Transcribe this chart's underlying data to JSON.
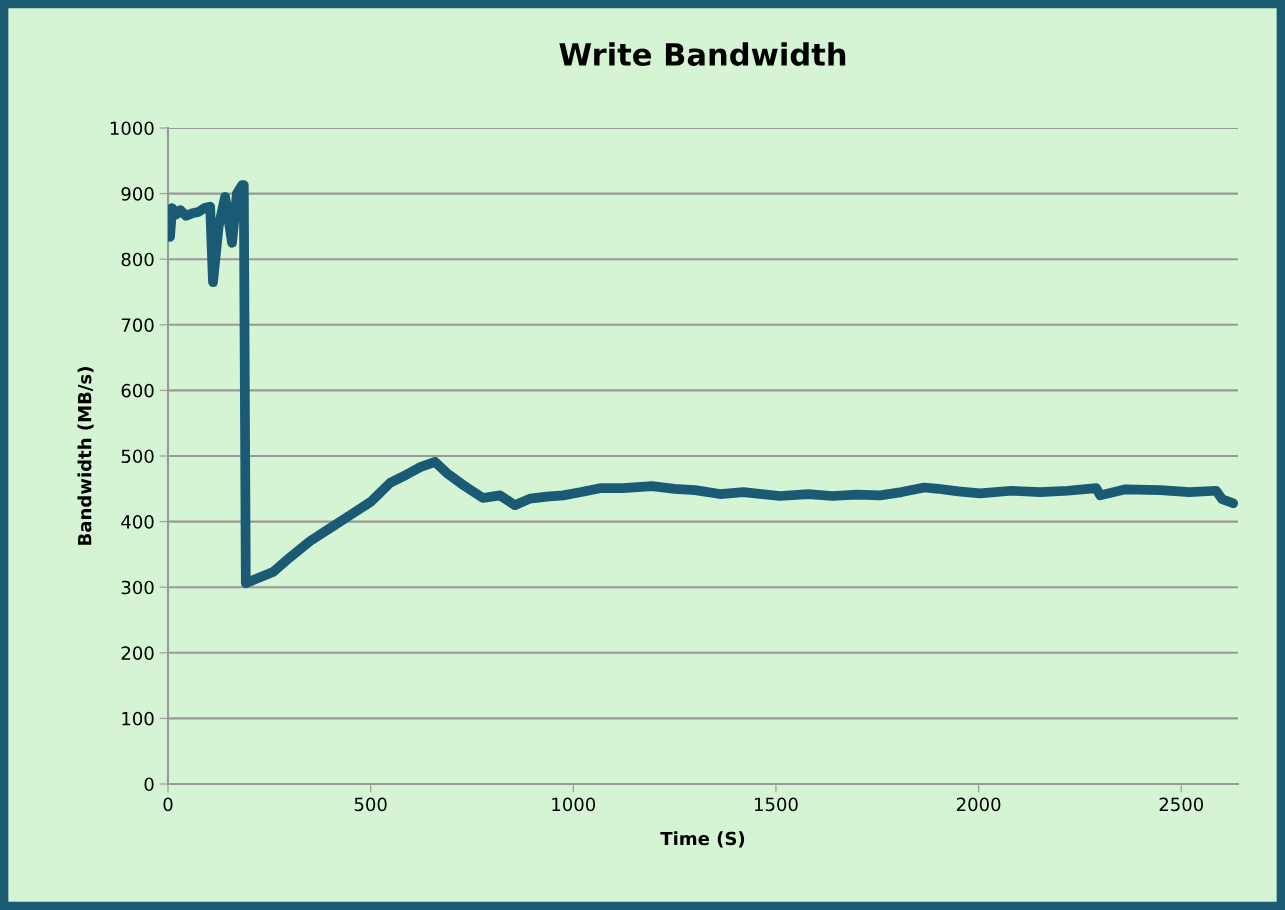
{
  "chart_data": {
    "type": "line",
    "title": "Write Bandwidth",
    "xlabel": "Time (S)",
    "ylabel": "Bandwidth (MB/s)",
    "x": [
      5,
      8,
      10,
      20,
      30,
      45,
      60,
      75,
      90,
      104,
      111,
      125,
      141,
      158,
      170,
      183,
      187,
      192,
      215,
      259,
      300,
      350,
      400,
      450,
      500,
      548,
      590,
      622,
      659,
      688,
      730,
      777,
      819,
      856,
      893,
      935,
      975,
      1020,
      1066,
      1123,
      1194,
      1250,
      1300,
      1362,
      1420,
      1510,
      1580,
      1639,
      1700,
      1757,
      1810,
      1866,
      1900,
      1950,
      2004,
      2080,
      2152,
      2220,
      2290,
      2300,
      2360,
      2448,
      2520,
      2586,
      2601,
      2628
    ],
    "series": [
      {
        "color": "#1b5a74",
        "values": [
          834,
          860,
          878,
          868,
          875,
          866,
          870,
          872,
          878,
          880,
          765,
          850,
          895,
          825,
          900,
          913,
          913,
          306,
          312,
          323,
          345,
          370,
          390,
          410,
          430,
          459,
          472,
          483,
          491,
          474,
          455,
          436,
          440,
          425,
          435,
          438,
          440,
          445,
          451,
          451,
          454,
          450,
          448,
          442,
          445,
          439,
          442,
          439,
          441,
          440,
          445,
          452,
          450,
          446,
          443,
          447,
          445,
          447,
          451,
          440,
          449,
          448,
          445,
          447,
          434,
          428
        ]
      }
    ],
    "xlim": [
      0,
      2640
    ],
    "xticks": [
      0,
      500,
      1000,
      1500,
      2000,
      2500
    ],
    "ylim": [
      0,
      1000
    ],
    "yticks": [
      0,
      100,
      200,
      300,
      400,
      500,
      600,
      700,
      800,
      900,
      1000
    ],
    "grid": "y",
    "marker": "none",
    "line_style": "solid"
  }
}
